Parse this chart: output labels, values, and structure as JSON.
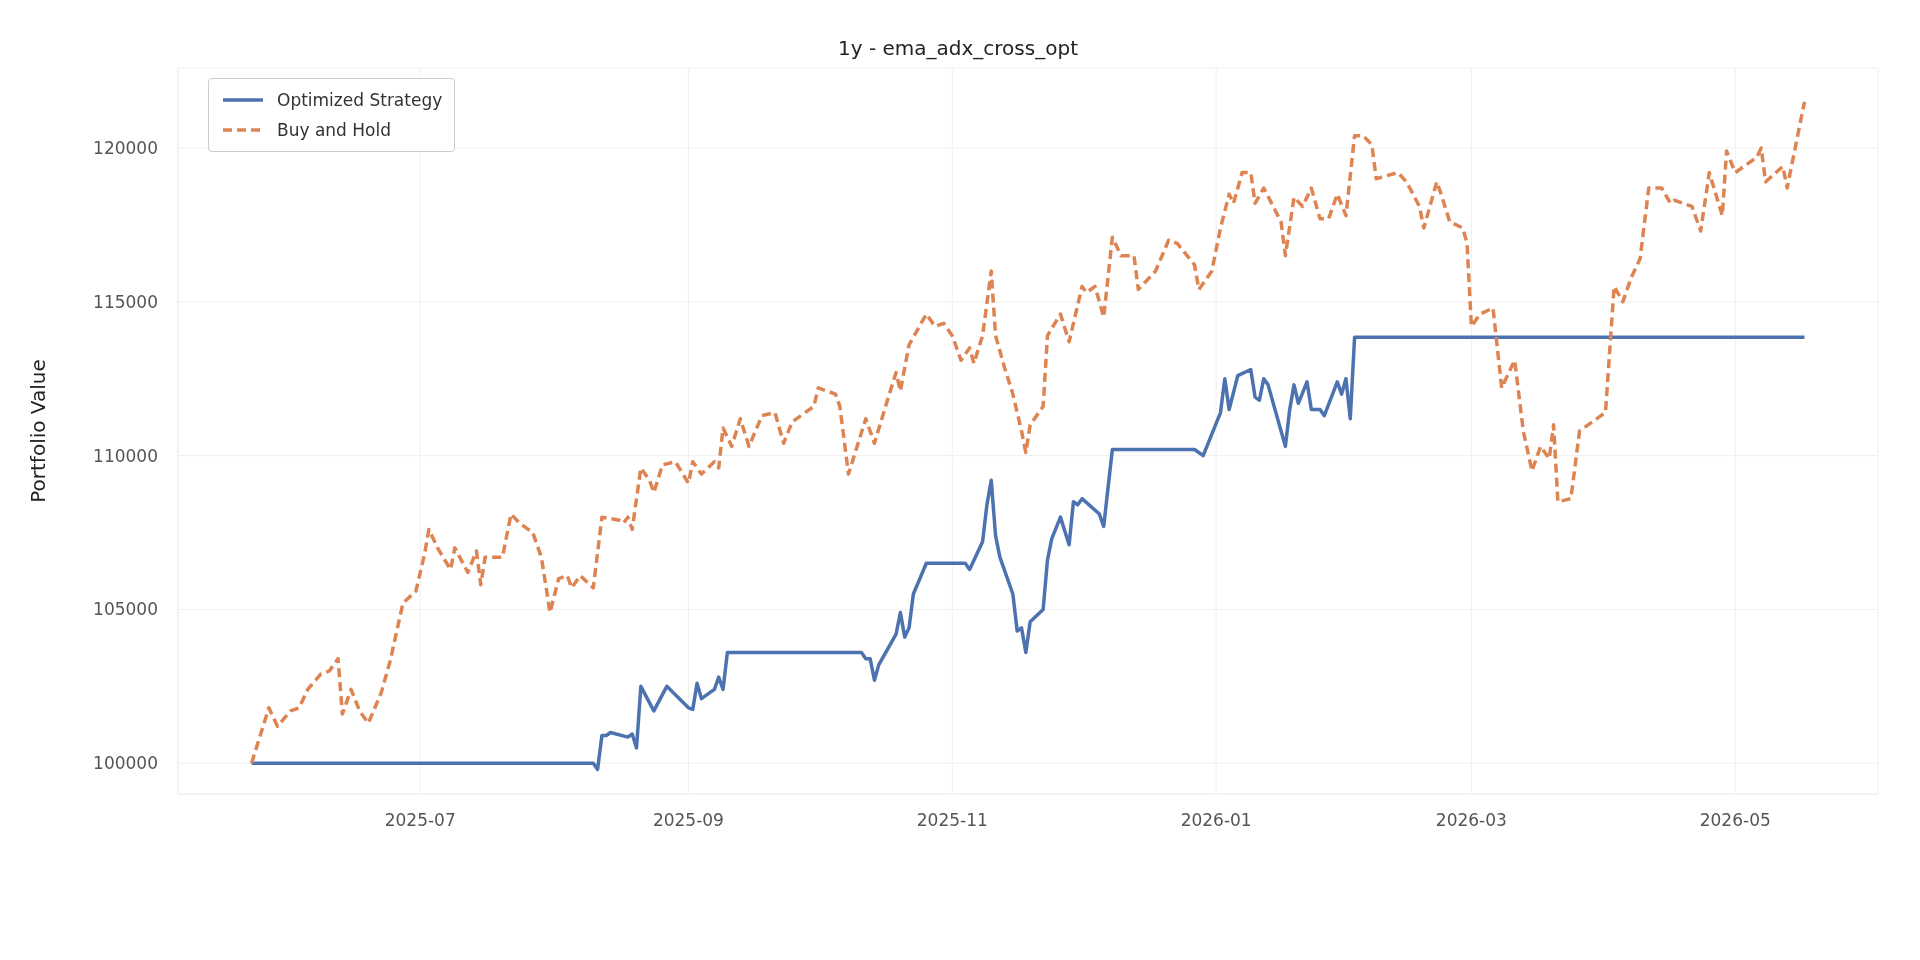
{
  "chart_data": {
    "type": "line",
    "title": "1y - ema_adx_cross_opt",
    "ylabel": "Portfolio Value",
    "xlim": [
      "2025-05-06",
      "2026-06-03"
    ],
    "xticks": [
      "2025-07",
      "2025-09",
      "2025-11",
      "2026-01",
      "2026-03",
      "2026-05"
    ],
    "ylim": [
      99000,
      122600
    ],
    "yticks": [
      100000,
      105000,
      110000,
      115000,
      120000
    ],
    "grid": true,
    "legend": "top left",
    "series": [
      {
        "name": "Optimized Strategy",
        "color": "#4c72b0",
        "line_style": "solid",
        "x": [
          "2025-05-23",
          "2025-08-10",
          "2025-08-11",
          "2025-08-12",
          "2025-08-13",
          "2025-08-14",
          "2025-08-18",
          "2025-08-19",
          "2025-08-20",
          "2025-08-21",
          "2025-08-24",
          "2025-08-27",
          "2025-09-01",
          "2025-09-02",
          "2025-09-03",
          "2025-09-04",
          "2025-09-07",
          "2025-09-08",
          "2025-09-09",
          "2025-09-10",
          "2025-10-11",
          "2025-10-12",
          "2025-10-13",
          "2025-10-14",
          "2025-10-15",
          "2025-10-19",
          "2025-10-20",
          "2025-10-21",
          "2025-10-22",
          "2025-10-23",
          "2025-10-26",
          "2025-11-04",
          "2025-11-05",
          "2025-11-08",
          "2025-11-09",
          "2025-11-10",
          "2025-11-11",
          "2025-11-12",
          "2025-11-15",
          "2025-11-16",
          "2025-11-17",
          "2025-11-18",
          "2025-11-19",
          "2025-11-22",
          "2025-11-23",
          "2025-11-24",
          "2025-11-26",
          "2025-11-28",
          "2025-11-29",
          "2025-11-30",
          "2025-12-01",
          "2025-12-05",
          "2025-12-06",
          "2025-12-08",
          "2025-12-27",
          "2025-12-29",
          "2026-01-02",
          "2026-01-03",
          "2026-01-04",
          "2026-01-06",
          "2026-01-09",
          "2026-01-10",
          "2026-01-11",
          "2026-01-12",
          "2026-01-13",
          "2026-01-17",
          "2026-01-18",
          "2026-01-19",
          "2026-01-20",
          "2026-01-22",
          "2026-01-23",
          "2026-01-25",
          "2026-01-26",
          "2026-01-29",
          "2026-01-30",
          "2026-01-31",
          "2026-02-01",
          "2026-02-02",
          "2026-05-17"
        ],
        "values": [
          100000,
          100000,
          99800,
          100900,
          100900,
          101000,
          100850,
          100950,
          100500,
          102500,
          101700,
          102500,
          101800,
          101750,
          102600,
          102100,
          102400,
          102800,
          102400,
          103600,
          103600,
          103400,
          103400,
          102700,
          103200,
          104200,
          104900,
          104100,
          104400,
          105500,
          106500,
          106500,
          106300,
          107200,
          108400,
          109200,
          107400,
          106700,
          105500,
          104300,
          104400,
          103600,
          104600,
          105000,
          106600,
          107300,
          108000,
          107100,
          108500,
          108400,
          108600,
          108100,
          107700,
          110200,
          110200,
          110000,
          111400,
          112500,
          111500,
          112600,
          112800,
          111900,
          111800,
          112500,
          112300,
          110300,
          111500,
          112300,
          111700,
          112400,
          111500,
          111500,
          111300,
          112400,
          112000,
          112500,
          111200,
          113850,
          113850
        ]
      },
      {
        "name": "Buy and Hold",
        "color": "#dd8452",
        "line_style": "dashed",
        "x": [
          "2025-05-23",
          "2025-05-27",
          "2025-05-29",
          "2025-06-01",
          "2025-06-03",
          "2025-06-05",
          "2025-06-08",
          "2025-06-10",
          "2025-06-12",
          "2025-06-13",
          "2025-06-15",
          "2025-06-17",
          "2025-06-19",
          "2025-06-22",
          "2025-06-24",
          "2025-06-27",
          "2025-06-30",
          "2025-07-02",
          "2025-07-03",
          "2025-07-05",
          "2025-07-08",
          "2025-07-09",
          "2025-07-12",
          "2025-07-14",
          "2025-07-15",
          "2025-07-16",
          "2025-07-20",
          "2025-07-22",
          "2025-07-24",
          "2025-07-27",
          "2025-07-29",
          "2025-07-31",
          "2025-08-02",
          "2025-08-04",
          "2025-08-05",
          "2025-08-07",
          "2025-08-10",
          "2025-08-12",
          "2025-08-16",
          "2025-08-17",
          "2025-08-18",
          "2025-08-19",
          "2025-08-21",
          "2025-08-23",
          "2025-08-24",
          "2025-08-26",
          "2025-08-29",
          "2025-09-01",
          "2025-09-02",
          "2025-09-04",
          "2025-09-07",
          "2025-09-08",
          "2025-09-09",
          "2025-09-11",
          "2025-09-13",
          "2025-09-15",
          "2025-09-18",
          "2025-09-21",
          "2025-09-23",
          "2025-09-25",
          "2025-09-27",
          "2025-09-30",
          "2025-10-01",
          "2025-10-05",
          "2025-10-06",
          "2025-10-08",
          "2025-10-12",
          "2025-10-14",
          "2025-10-17",
          "2025-10-19",
          "2025-10-20",
          "2025-10-22",
          "2025-10-26",
          "2025-10-28",
          "2025-10-30",
          "2025-11-01",
          "2025-11-03",
          "2025-11-05",
          "2025-11-06",
          "2025-11-08",
          "2025-11-10",
          "2025-11-11",
          "2025-11-13",
          "2025-11-15",
          "2025-11-17",
          "2025-11-18",
          "2025-11-19",
          "2025-11-22",
          "2025-11-23",
          "2025-11-26",
          "2025-11-28",
          "2025-12-01",
          "2025-12-02",
          "2025-12-04",
          "2025-12-06",
          "2025-12-08",
          "2025-12-10",
          "2025-12-13",
          "2025-12-14",
          "2025-12-18",
          "2025-12-21",
          "2025-12-23",
          "2025-12-27",
          "2025-12-28",
          "2025-12-31",
          "2026-01-02",
          "2026-01-04",
          "2026-01-05",
          "2026-01-07",
          "2026-01-09",
          "2026-01-10",
          "2026-01-12",
          "2026-01-16",
          "2026-01-17",
          "2026-01-19",
          "2026-01-21",
          "2026-01-23",
          "2026-01-25",
          "2026-01-27",
          "2026-01-29",
          "2026-01-31",
          "2026-02-02",
          "2026-02-04",
          "2026-02-06",
          "2026-02-07",
          "2026-02-12",
          "2026-02-14",
          "2026-02-17",
          "2026-02-18",
          "2026-02-21",
          "2026-02-22",
          "2026-02-24",
          "2026-02-27",
          "2026-02-28",
          "2026-03-01",
          "2026-03-03",
          "2026-03-06",
          "2026-03-08",
          "2026-03-11",
          "2026-03-13",
          "2026-03-15",
          "2026-03-17",
          "2026-03-19",
          "2026-03-20",
          "2026-03-21",
          "2026-03-24",
          "2026-03-26",
          "2026-03-30",
          "2026-04-01",
          "2026-04-03",
          "2026-04-05",
          "2026-04-07",
          "2026-04-09",
          "2026-04-11",
          "2026-04-14",
          "2026-04-16",
          "2026-04-17",
          "2026-04-21",
          "2026-04-23",
          "2026-04-25",
          "2026-04-28",
          "2026-04-29",
          "2026-05-01",
          "2026-05-06",
          "2026-05-07",
          "2026-05-08",
          "2026-05-12",
          "2026-05-13",
          "2026-05-17"
        ],
        "values": [
          100000,
          101800,
          101200,
          101700,
          101800,
          102400,
          102900,
          103000,
          103400,
          101600,
          102400,
          101700,
          101300,
          102300,
          103300,
          105200,
          105600,
          106800,
          107600,
          107000,
          106300,
          107000,
          106200,
          106900,
          105800,
          106700,
          106700,
          108100,
          107800,
          107500,
          106700,
          104900,
          106000,
          106100,
          105700,
          106100,
          105700,
          108000,
          107900,
          107800,
          108000,
          107600,
          109600,
          109200,
          108800,
          109700,
          109800,
          109100,
          109800,
          109400,
          109800,
          109600,
          110900,
          110300,
          111200,
          110300,
          111300,
          111400,
          110400,
          111100,
          111300,
          111600,
          112200,
          112000,
          111600,
          109400,
          111200,
          110400,
          111800,
          112700,
          112100,
          113600,
          114600,
          114200,
          114300,
          113900,
          113100,
          113500,
          113000,
          113900,
          116000,
          113900,
          112900,
          112000,
          110800,
          110100,
          111000,
          111600,
          113900,
          114600,
          113700,
          115500,
          115300,
          115500,
          114500,
          117100,
          116500,
          116500,
          115400,
          116000,
          117000,
          116900,
          116200,
          115400,
          116000,
          117400,
          118500,
          118200,
          119200,
          119200,
          118200,
          118700,
          117600,
          116500,
          118400,
          118100,
          118700,
          117700,
          117700,
          118500,
          117800,
          120400,
          120400,
          120100,
          119000,
          119200,
          118900,
          118100,
          117400,
          118900,
          118500,
          117600,
          117400,
          116900,
          114200,
          114600,
          114800,
          112200,
          113100,
          110800,
          109500,
          110300,
          109900,
          111000,
          108500,
          108600,
          110800,
          111200,
          111400,
          115500,
          115000,
          115800,
          116400,
          118700,
          118700,
          118200,
          118300,
          118100,
          117300,
          119200,
          117800,
          119900,
          119200,
          119700,
          120000,
          118900,
          119400,
          118700,
          121500
        ]
      }
    ]
  }
}
